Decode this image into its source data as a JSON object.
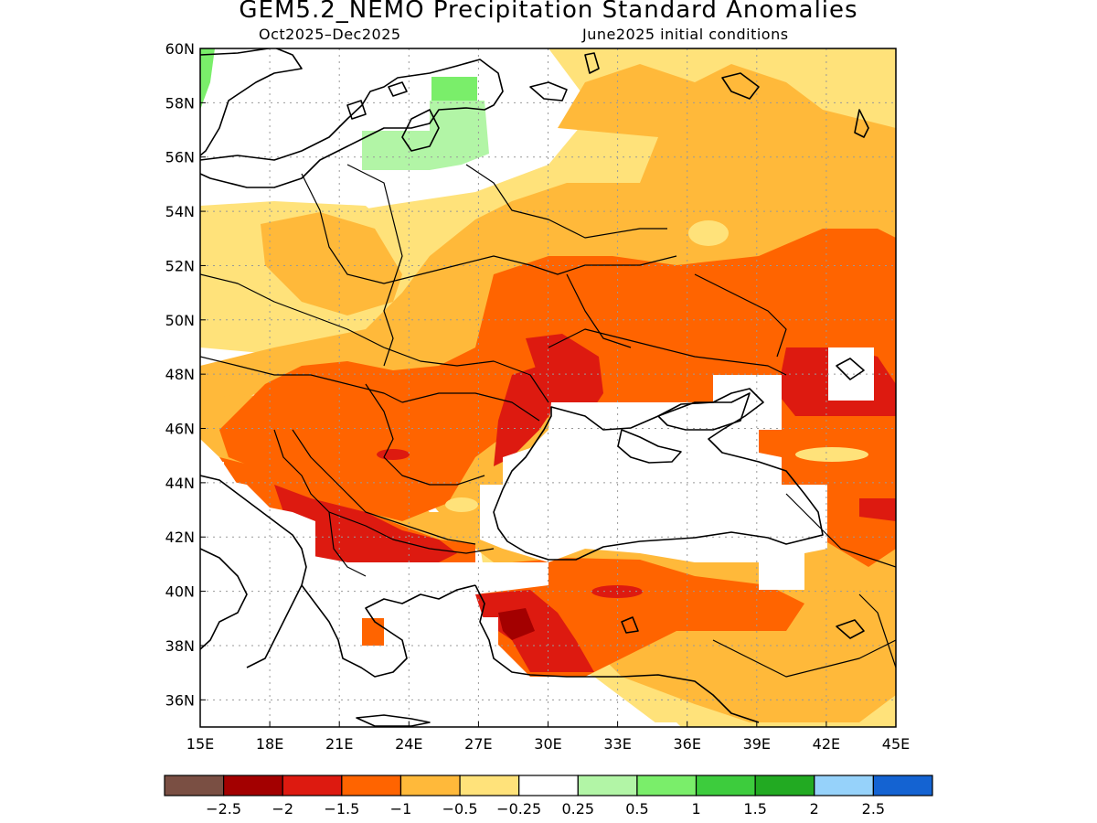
{
  "title": "GEM5.2_NEMO Precipitation Standard Anomalies",
  "subtitle_left": "Oct2025–Dec2025",
  "subtitle_right": "June2025 initial conditions",
  "map": {
    "lon_range": [
      15,
      45
    ],
    "lat_range": [
      35,
      60
    ],
    "lon_ticks": [
      "15E",
      "18E",
      "21E",
      "24E",
      "27E",
      "30E",
      "33E",
      "36E",
      "39E",
      "42E",
      "45E"
    ],
    "lat_ticks": [
      "60N",
      "58N",
      "56N",
      "54N",
      "52N",
      "50N",
      "48N",
      "46N",
      "44N",
      "42N",
      "40N",
      "38N",
      "36N"
    ],
    "gridlines": true
  },
  "colorbar": {
    "colors": [
      "#7a4f43",
      "#a30000",
      "#dd1a10",
      "#ff6400",
      "#ffb93a",
      "#ffe27a",
      "#ffffff",
      "#b2f5a6",
      "#7aee6a",
      "#3dcc3d",
      "#22aa22",
      "#96d2fa",
      "#1463d2"
    ],
    "labels": [
      "−2.5",
      "−2",
      "−1.5",
      "−1",
      "−0.5",
      "−0.25",
      "0.25",
      "0.5",
      "1",
      "1.5",
      "2",
      "2.5"
    ]
  }
}
